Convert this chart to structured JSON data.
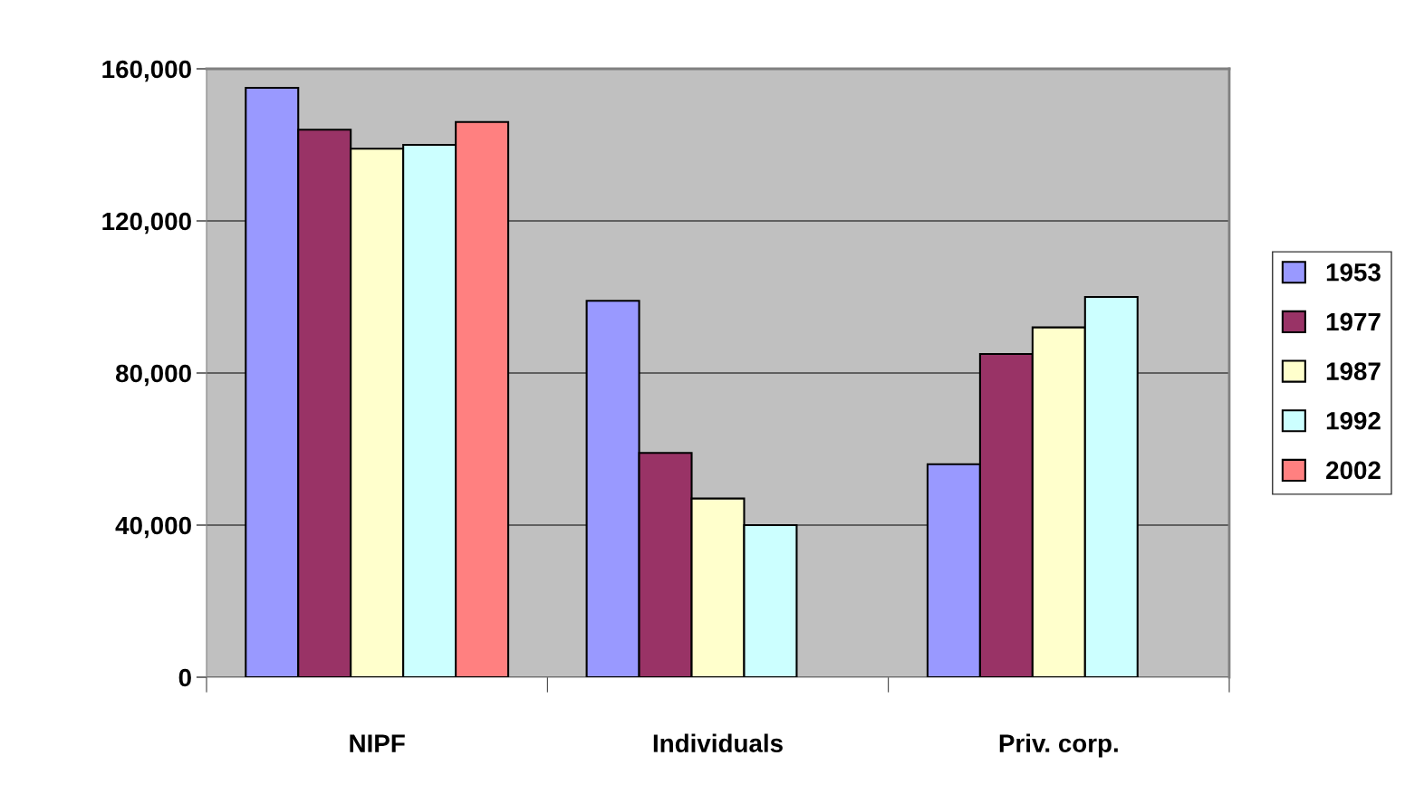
{
  "chart_data": {
    "type": "bar",
    "categories": [
      "NIPF",
      "Individuals",
      "Priv. corp."
    ],
    "series": [
      {
        "name": "1953",
        "color": "#9999ff",
        "values": [
          155000,
          99000,
          56000
        ]
      },
      {
        "name": "1977",
        "color": "#993366",
        "values": [
          144000,
          59000,
          85000
        ]
      },
      {
        "name": "1987",
        "color": "#ffffcc",
        "values": [
          139000,
          47000,
          92000
        ]
      },
      {
        "name": "1992",
        "color": "#ccffff",
        "values": [
          140000,
          40000,
          100000
        ]
      },
      {
        "name": "2002",
        "color": "#ff8080",
        "values": [
          146000,
          null,
          null
        ]
      }
    ],
    "ylim": [
      0,
      160000
    ],
    "yticks": [
      {
        "value": 0,
        "label": "0"
      },
      {
        "value": 40000,
        "label": "40,000"
      },
      {
        "value": 80000,
        "label": "80,000"
      },
      {
        "value": 120000,
        "label": "120,000"
      },
      {
        "value": 160000,
        "label": "160,000"
      }
    ],
    "grid": "y",
    "legend": "right"
  }
}
